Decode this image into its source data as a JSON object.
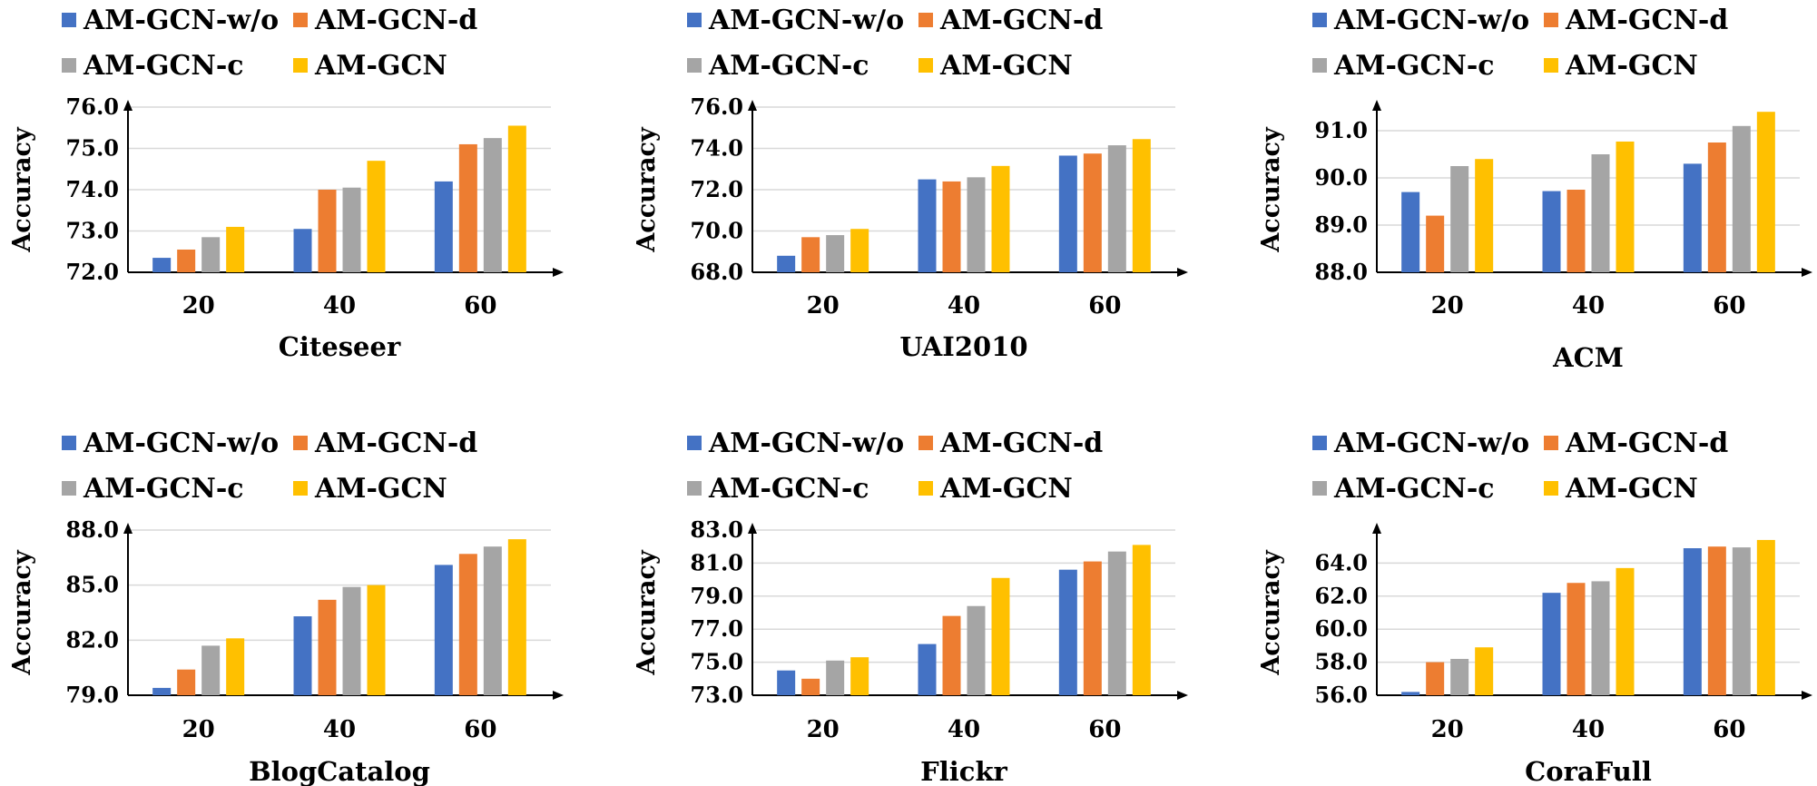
{
  "colors": {
    "AM-GCN-w/o": "#4472C4",
    "AM-GCN-d": "#ED7D31",
    "AM-GCN-c": "#A5A5A5",
    "AM-GCN": "#FFC000",
    "axis": "#000000",
    "grid": "#D9D9D9"
  },
  "chart_data": [
    {
      "type": "bar",
      "xlabel": "Citeseer",
      "ylabel": "Accuracy",
      "categories": [
        "20",
        "40",
        "60"
      ],
      "ylim": [
        72.0,
        76.0
      ],
      "yticks": [
        "72.0",
        "73.0",
        "74.0",
        "75.0",
        "76.0"
      ],
      "ytick_values": [
        72,
        73,
        74,
        75,
        76
      ],
      "grid": true,
      "legend": "top",
      "series": [
        {
          "name": "AM-GCN-w/o",
          "values": [
            72.35,
            73.05,
            74.2
          ]
        },
        {
          "name": "AM-GCN-d",
          "values": [
            72.55,
            74.0,
            75.1
          ]
        },
        {
          "name": "AM-GCN-c",
          "values": [
            72.85,
            74.05,
            75.25
          ]
        },
        {
          "name": "AM-GCN",
          "values": [
            73.1,
            74.7,
            75.55
          ]
        }
      ]
    },
    {
      "type": "bar",
      "xlabel": "UAI2010",
      "ylabel": "Accuracy",
      "categories": [
        "20",
        "40",
        "60"
      ],
      "ylim": [
        68.0,
        76.0
      ],
      "yticks": [
        "68.0",
        "70.0",
        "72.0",
        "74.0",
        "76.0"
      ],
      "ytick_values": [
        68,
        70,
        72,
        74,
        76
      ],
      "grid": true,
      "legend": "top",
      "series": [
        {
          "name": "AM-GCN-w/o",
          "values": [
            68.8,
            72.5,
            73.65
          ]
        },
        {
          "name": "AM-GCN-d",
          "values": [
            69.7,
            72.4,
            73.75
          ]
        },
        {
          "name": "AM-GCN-c",
          "values": [
            69.8,
            72.6,
            74.15
          ]
        },
        {
          "name": "AM-GCN",
          "values": [
            70.1,
            73.15,
            74.45
          ]
        }
      ]
    },
    {
      "type": "bar",
      "xlabel": "ACM",
      "ylabel": "Accuracy",
      "categories": [
        "20",
        "40",
        "60"
      ],
      "ylim": [
        88.0,
        91.5
      ],
      "yticks": [
        "88.0",
        "89.0",
        "90.0",
        "91.0"
      ],
      "ytick_values": [
        88,
        89,
        90,
        91
      ],
      "grid": true,
      "legend": "top",
      "series": [
        {
          "name": "AM-GCN-w/o",
          "values": [
            89.7,
            89.72,
            90.3
          ]
        },
        {
          "name": "AM-GCN-d",
          "values": [
            89.2,
            89.75,
            90.75
          ]
        },
        {
          "name": "AM-GCN-c",
          "values": [
            90.25,
            90.5,
            91.1
          ]
        },
        {
          "name": "AM-GCN",
          "values": [
            90.4,
            90.77,
            91.4
          ]
        }
      ]
    },
    {
      "type": "bar",
      "xlabel": "BlogCatalog",
      "ylabel": "Accuracy",
      "categories": [
        "20",
        "40",
        "60"
      ],
      "ylim": [
        79.0,
        88.0
      ],
      "yticks": [
        "79.0",
        "82.0",
        "85.0",
        "88.0"
      ],
      "ytick_values": [
        79,
        82,
        85,
        88
      ],
      "grid": true,
      "legend": "top",
      "series": [
        {
          "name": "AM-GCN-w/o",
          "values": [
            79.4,
            83.3,
            86.1
          ]
        },
        {
          "name": "AM-GCN-d",
          "values": [
            80.4,
            84.2,
            86.7
          ]
        },
        {
          "name": "AM-GCN-c",
          "values": [
            81.7,
            84.9,
            87.1
          ]
        },
        {
          "name": "AM-GCN",
          "values": [
            82.1,
            85.0,
            87.5
          ]
        }
      ]
    },
    {
      "type": "bar",
      "xlabel": "Flickr",
      "ylabel": "Accuracy",
      "categories": [
        "20",
        "40",
        "60"
      ],
      "ylim": [
        73.0,
        83.0
      ],
      "yticks": [
        "73.0",
        "75.0",
        "77.0",
        "79.0",
        "81.0",
        "83.0"
      ],
      "ytick_values": [
        73,
        75,
        77,
        79,
        81,
        83
      ],
      "grid": true,
      "legend": "top",
      "series": [
        {
          "name": "AM-GCN-w/o",
          "values": [
            74.5,
            76.1,
            80.6
          ]
        },
        {
          "name": "AM-GCN-d",
          "values": [
            74.0,
            77.8,
            81.1
          ]
        },
        {
          "name": "AM-GCN-c",
          "values": [
            75.1,
            78.4,
            81.7
          ]
        },
        {
          "name": "AM-GCN",
          "values": [
            75.3,
            80.1,
            82.1
          ]
        }
      ]
    },
    {
      "type": "bar",
      "xlabel": "CoraFull",
      "ylabel": "Accuracy",
      "categories": [
        "20",
        "40",
        "60"
      ],
      "ylim": [
        56.0,
        66.0
      ],
      "yticks": [
        "56.0",
        "58.0",
        "60.0",
        "62.0",
        "64.0"
      ],
      "ytick_values": [
        56,
        58,
        60,
        62,
        64
      ],
      "grid": true,
      "legend": "top",
      "series": [
        {
          "name": "AM-GCN-w/o",
          "values": [
            56.2,
            62.2,
            64.9
          ]
        },
        {
          "name": "AM-GCN-d",
          "values": [
            58.0,
            62.8,
            65.0
          ]
        },
        {
          "name": "AM-GCN-c",
          "values": [
            58.2,
            62.9,
            64.95
          ]
        },
        {
          "name": "AM-GCN",
          "values": [
            58.9,
            63.7,
            65.4
          ]
        }
      ]
    }
  ]
}
